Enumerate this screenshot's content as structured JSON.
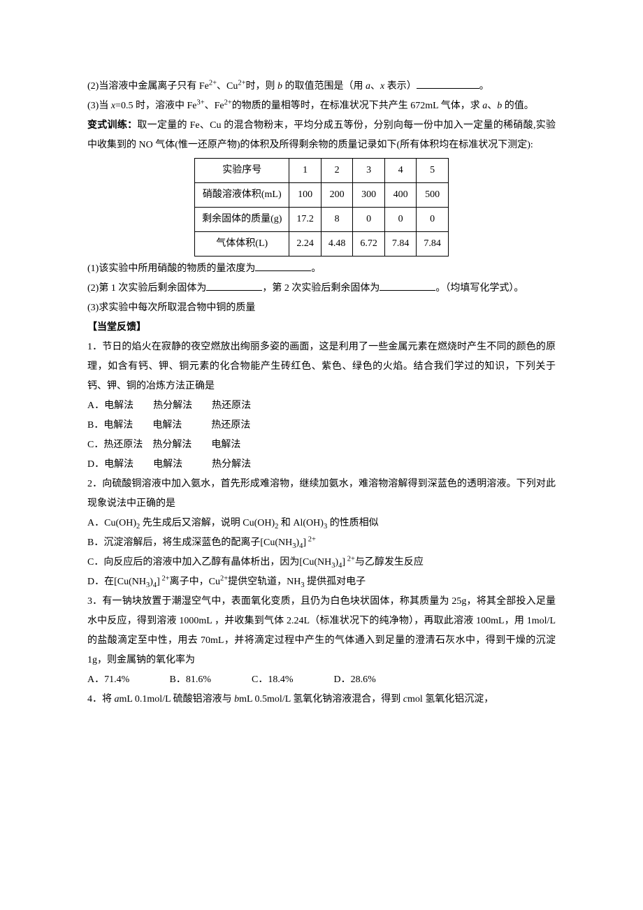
{
  "colors": {
    "text": "#000000",
    "bg": "#ffffff",
    "border": "#000000"
  },
  "fonts": {
    "body_pt": 14,
    "line_height": 2.0
  },
  "p1_prefix": "(2)当溶液中金属离子只有 Fe",
  "p1_mid1": "、Cu",
  "p1_mid2": "时，则 ",
  "p1_var_b": "b",
  "p1_mid3": " 的取值范围是（用 ",
  "p1_var_a": "a",
  "p1_mid4": "、",
  "p1_var_x": "x",
  "p1_mid5": " 表示）",
  "p1_suffix": "。",
  "p2_a": "(3)当 ",
  "p2_b": "x",
  "p2_c": "=0.5 时，溶液中 Fe",
  "p2_d": "、Fe",
  "p2_e": "的物质的量相等时，在标准状况下共产生 672mL 气体，求 ",
  "p2_f": "a",
  "p2_g": "、",
  "p2_h": "b",
  "p2_i": " 的值。",
  "vt_label": "变式训练：",
  "vt_text": "取一定量的 Fe、Cu 的混合物粉末，平均分成五等份，分别向每一份中加入一定量的稀硝酸,实验中收集到的 NO 气体(惟一还原产物)的体积及所得剩余物的质量记录如下(所有体积均在标准状况下测定):",
  "table": {
    "row_labels": [
      "实验序号",
      "硝酸溶液体积(mL)",
      "剩余固体的质量(g)",
      "气体体积(L)"
    ],
    "cols": [
      "1",
      "2",
      "3",
      "4",
      "5"
    ],
    "vol": [
      "100",
      "200",
      "300",
      "400",
      "500"
    ],
    "mass": [
      "17.2",
      "8",
      "0",
      "0",
      "0"
    ],
    "gas": [
      "2.24",
      "4.48",
      "6.72",
      "7.84",
      "7.84"
    ],
    "border_color": "#000000",
    "cell_padding": "3px 10px"
  },
  "q1": "(1)该实验中所用硝酸的物质的量浓度为",
  "q1_suffix": "。",
  "q2_a": "(2)第 1 次实验后剩余固体为",
  "q2_b": "，第 2 次实验后剩余固体为",
  "q2_c": "。（均填写化学式）。",
  "q3": "(3)求实验中每次所取混合物中铜的质量",
  "feedback_head": "【当堂反馈】",
  "f1": "1．节日的焰火在寂静的夜空燃放出绚丽多姿的画面，这是利用了一些金属元素在燃烧时产生不同的颜色的原理，如含有钙、钾、铜元素的化合物能产生砖红色、紫色、绿色的火焰。结合我们学过的知识，下列关于钙、钾、铜的冶炼方法正确是",
  "f1A": "A．电解法  热分解法  热还原法",
  "f1B": "B．电解法  电解法   热还原法",
  "f1C": "C．热还原法 热分解法  电解法",
  "f1D": "D．电解法  电解法   热分解法",
  "f2": "2．向硫酸铜溶液中加入氨水，首先形成难溶物，继续加氨水，难溶物溶解得到深蓝色的透明溶液。下列对此现象说法中正确的是",
  "f2A_a": "A．Cu(OH)",
  "f2A_b": " 先生成后又溶解，说明 Cu(OH)",
  "f2A_c": " 和 Al(OH)",
  "f2A_d": " 的性质相似",
  "f2B_a": "B．沉淀溶解后，将生成深蓝色的配离子[Cu(NH",
  "f2B_b": ")",
  "f2B_c": "]",
  "f2C_a": "C．向反应后的溶液中加入乙醇有晶体析出，因为[Cu(NH",
  "f2C_b": ")",
  "f2C_c": "]",
  "f2C_d": "与乙醇发生反应",
  "f2D_a": "D．在[Cu(NH",
  "f2D_b": ")",
  "f2D_c": "]",
  "f2D_d": "离子中，Cu",
  "f2D_e": "提供空轨道，NH",
  "f2D_f": " 提供孤对电子",
  "f3": "3．有一钠块放置于潮湿空气中，表面氧化变质，且仍为白色块状固体，称其质量为 25g，将其全部投入足量水中反应，得到溶液 1000mL ，并收集到气体 2.24L（标准状况下的纯净物），再取此溶液 100mL，用 1mol/L 的盐酸滴定至中性，用去 70mL，并将滴定过程中产生的气体通入到足量的澄清石灰水中，得到干燥的沉淀 1g，则金属钠的氧化率为",
  "f3A": "A．71.4%",
  "f3B": "B．81.6%",
  "f3C": "C．18.4%",
  "f3D": "D．28.6%",
  "f4_a": "4．将 ",
  "f4_b": "a",
  "f4_c": "mL 0.1mol/L 硫酸铝溶液与 ",
  "f4_d": "b",
  "f4_e": "mL 0.5mol/L 氢氧化钠溶液混合，得到 ",
  "f4_f": "c",
  "f4_g": "mol 氢氧化铝沉淀，"
}
